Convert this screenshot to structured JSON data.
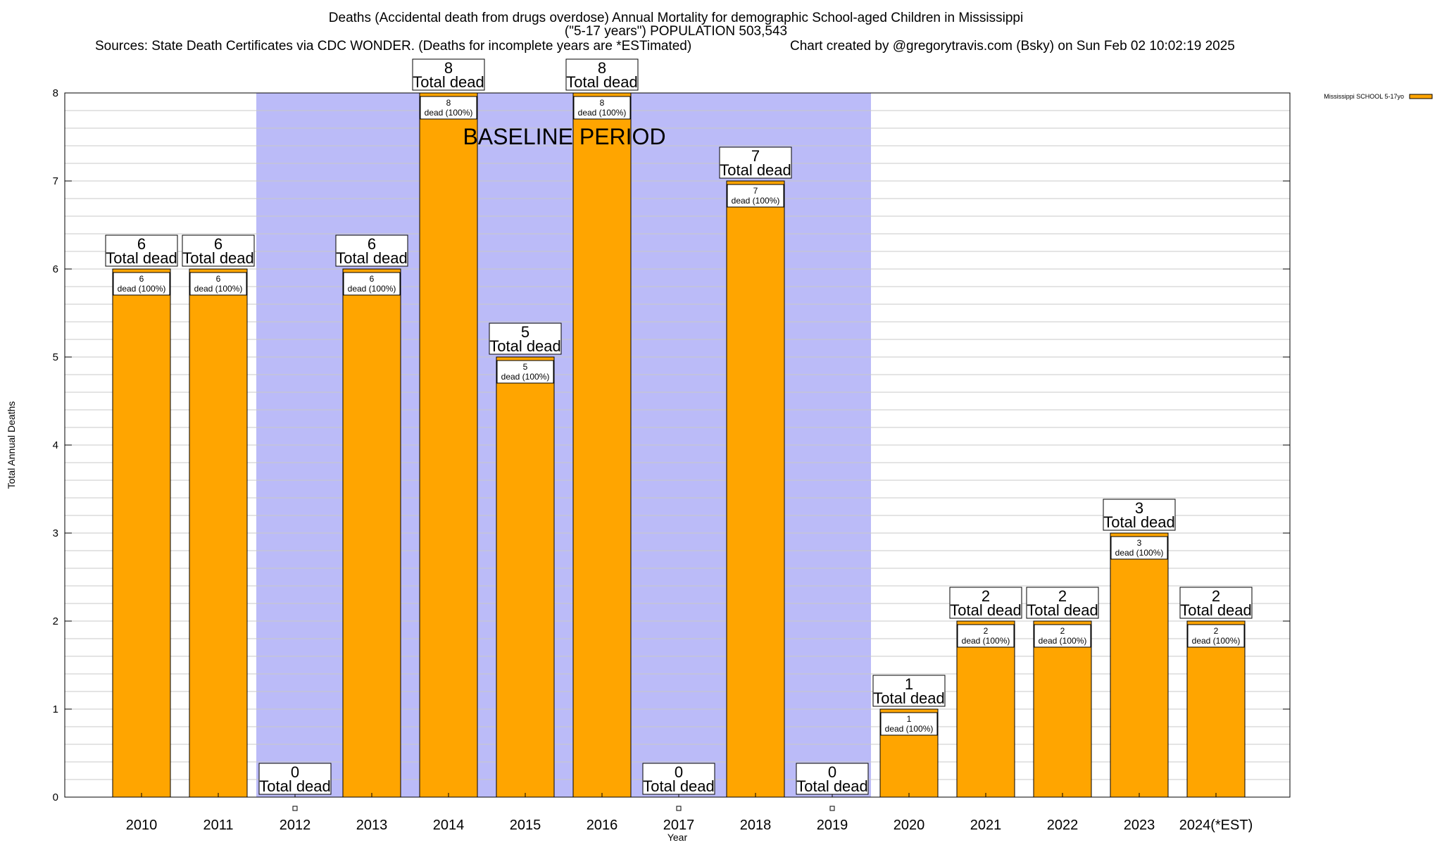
{
  "header": {
    "title_line1": "Deaths (Accidental death from drugs overdose) Annual Mortality for demographic School-aged Children in Mississippi",
    "title_line2": "(\"5-17 years\") POPULATION 503,543",
    "sources": "Sources: State Death Certificates via CDC WONDER. (Deaths for incomplete years are *ESTimated)",
    "credit": "Chart created by @gregorytravis.com (Bsky) on Sun Feb 02 10:02:19 2025"
  },
  "chart_data": {
    "type": "bar",
    "xlabel": "Year",
    "ylabel": "Total Annual Deaths",
    "ylim": [
      0,
      8
    ],
    "y_ticks": [
      0,
      1,
      2,
      3,
      4,
      5,
      6,
      7,
      8
    ],
    "grid": "horizontal",
    "categories": [
      "2010",
      "2011",
      "2012",
      "2013",
      "2014",
      "2015",
      "2016",
      "2017",
      "2018",
      "2019",
      "2020",
      "2021",
      "2022",
      "2023",
      "2024(*EST)"
    ],
    "series": [
      {
        "name": "Mississippi SCHOOL 5-17yo",
        "values": [
          6,
          6,
          0,
          6,
          8,
          5,
          8,
          0,
          7,
          0,
          1,
          2,
          2,
          3,
          2
        ]
      }
    ],
    "bar_label_suffix": "Total dead",
    "segment_label_suffix": "dead (100%)",
    "baseline_period": {
      "label": "BASELINE PERIOD",
      "from": "2012",
      "to": "2019"
    },
    "legend": {
      "position": "top-right"
    }
  },
  "colors": {
    "bar": "#ffa500",
    "baseline_shade": "#bbbbf8",
    "grid": "#c8c8c8",
    "axis": "#000000"
  }
}
